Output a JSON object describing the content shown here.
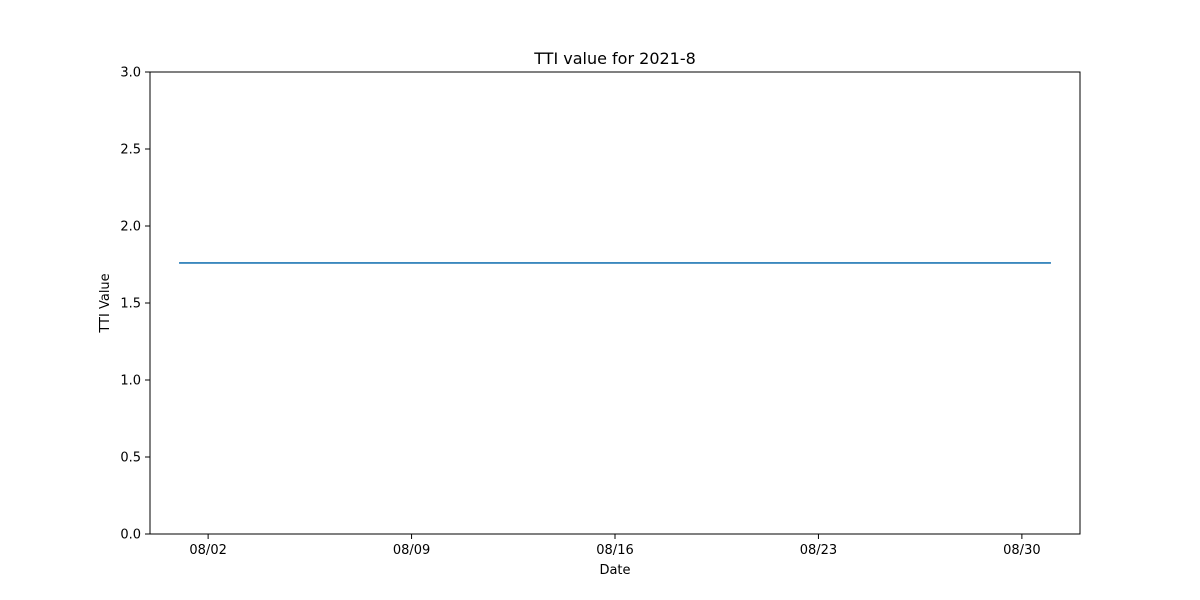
{
  "chart_data": {
    "type": "line",
    "title": "TTI value for 2021-8",
    "xlabel": "Date",
    "ylabel": "TTI Value",
    "x_axis_type": "date",
    "xlim": [
      "2021-07-31",
      "2021-09-01"
    ],
    "ylim": [
      0,
      3
    ],
    "x_ticks": [
      {
        "date": "2021-08-02",
        "label": "08/02"
      },
      {
        "date": "2021-08-09",
        "label": "08/09"
      },
      {
        "date": "2021-08-16",
        "label": "08/16"
      },
      {
        "date": "2021-08-23",
        "label": "08/23"
      },
      {
        "date": "2021-08-30",
        "label": "08/30"
      }
    ],
    "y_ticks": [
      0.0,
      0.5,
      1.0,
      1.5,
      2.0,
      2.5,
      3.0
    ],
    "y_tick_labels": [
      "0.0",
      "0.5",
      "1.0",
      "1.5",
      "2.0",
      "2.5",
      "3.0"
    ],
    "grid": false,
    "legend": "none",
    "series": [
      {
        "color": "#1f77b4",
        "x": [
          "2021-08-01",
          "2021-08-31"
        ],
        "y": [
          1.76,
          1.76
        ]
      }
    ]
  }
}
